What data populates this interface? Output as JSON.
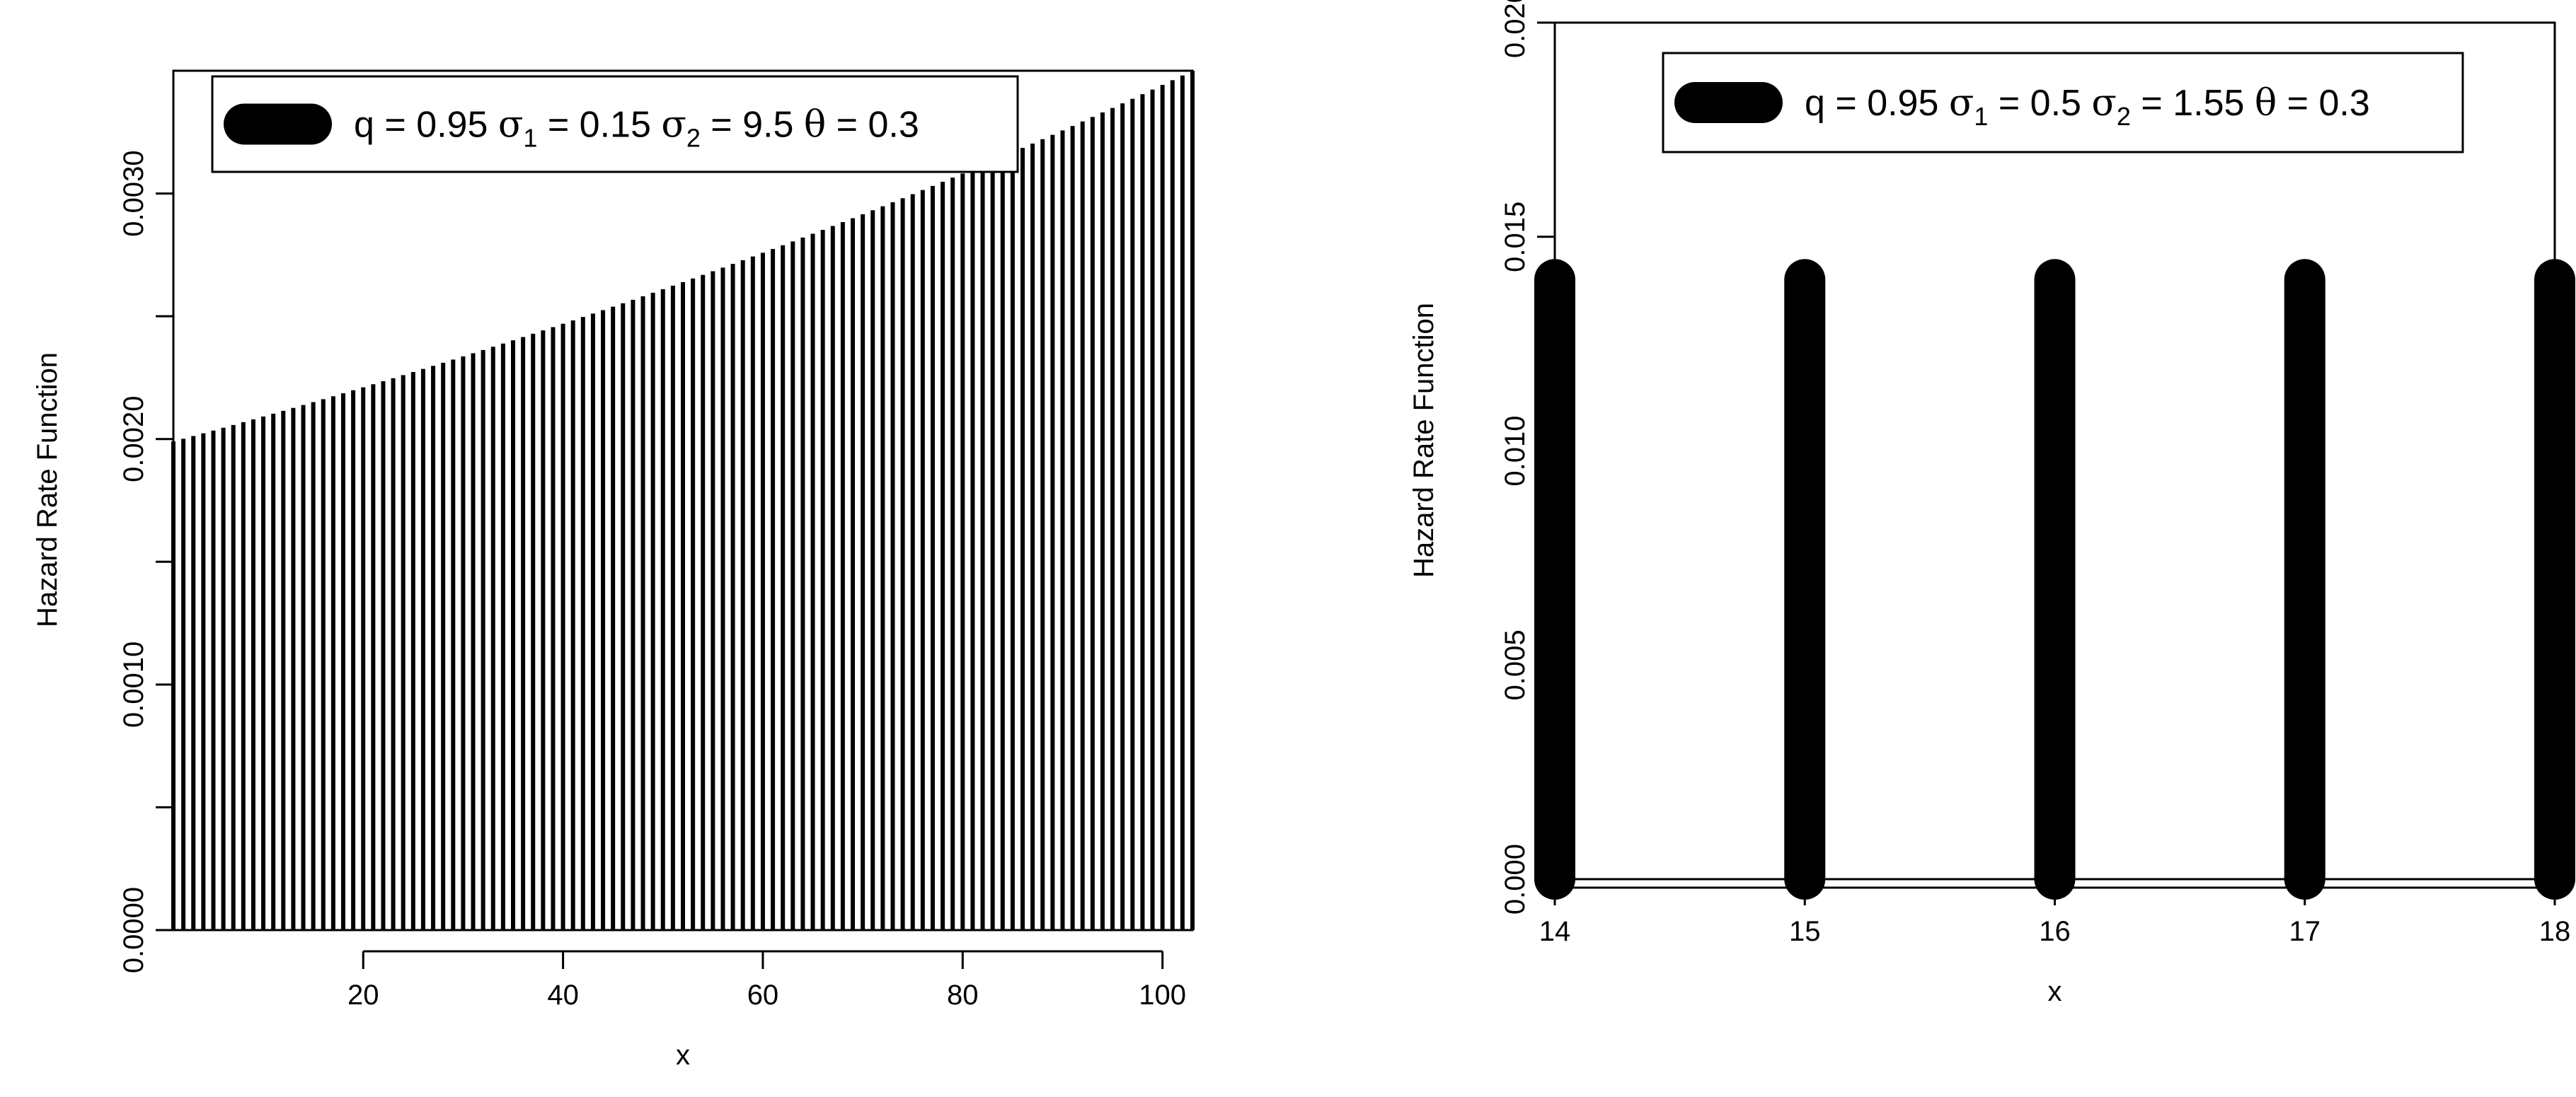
{
  "chart_data": [
    {
      "type": "bar",
      "xlabel": "x",
      "ylabel": "Hazard Rate Function",
      "xlim": [
        1,
        103
      ],
      "ylim": [
        0,
        0.0035
      ],
      "x_ticks": [
        20,
        40,
        60,
        80,
        100
      ],
      "x_tick_labels": [
        "20",
        "40",
        "60",
        "80",
        "100"
      ],
      "y_ticks": [
        0,
        0.0005,
        0.001,
        0.0015,
        0.002,
        0.0025,
        0.003
      ],
      "y_tick_labels": [
        "0.0000",
        "",
        "0.0010",
        "",
        "0.0020",
        "",
        "0.0030"
      ],
      "x": [
        1,
        103
      ],
      "values": [
        0.00199,
        0.0035
      ],
      "legend": {
        "q": "0.95",
        "sigma1": "0.15",
        "sigma2": "9.5",
        "theta": "0.3"
      },
      "legend_position": "top-left",
      "grid": false
    },
    {
      "type": "bar",
      "xlabel": "x",
      "ylabel": "Hazard Rate Function",
      "xlim": [
        14,
        18
      ],
      "ylim": [
        0,
        0.02
      ],
      "x_ticks": [
        14,
        15,
        16,
        17,
        18
      ],
      "x_tick_labels": [
        "14",
        "15",
        "16",
        "17",
        "18"
      ],
      "y_ticks": [
        0,
        0.005,
        0.01,
        0.015,
        0.02
      ],
      "y_tick_labels": [
        "0.000",
        "0.005",
        "0.010",
        "0.015",
        "0.020"
      ],
      "x": [
        14,
        15,
        16,
        17,
        18
      ],
      "values": [
        0.014,
        0.014,
        0.014,
        0.014,
        0.014
      ],
      "legend": {
        "q": "0.95",
        "sigma1": "0.5",
        "sigma2": "1.55",
        "theta": "0.3"
      },
      "legend_position": "top",
      "grid": false
    }
  ],
  "legend_labels": {
    "q": "q",
    "sigma": "σ",
    "sub1": "1",
    "sub2": "2",
    "theta": "θ",
    "eq": "="
  }
}
